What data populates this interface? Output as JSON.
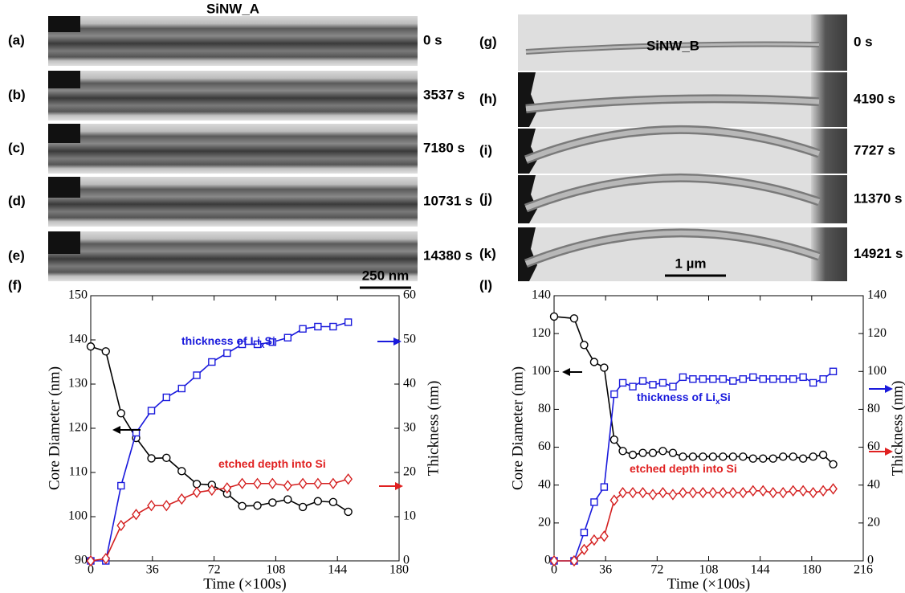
{
  "panels": {
    "left": {
      "title": "SiNW_A",
      "scale": "250 nm",
      "frames": [
        {
          "label": "(a)",
          "time": "0 s"
        },
        {
          "label": "(b)",
          "time": "3537 s"
        },
        {
          "label": "(c)",
          "time": "7180 s"
        },
        {
          "label": "(d)",
          "time": "10731 s"
        },
        {
          "label": "(e)",
          "time": "14380 s"
        }
      ]
    },
    "right": {
      "title": "SiNW_B",
      "scale": "1 µm",
      "frames": [
        {
          "label": "(g)",
          "time": "0 s"
        },
        {
          "label": "(h)",
          "time": "4190 s"
        },
        {
          "label": "(i)",
          "time": "7727 s"
        },
        {
          "label": "(j)",
          "time": "11370 s"
        },
        {
          "label": "(k)",
          "time": "14921 s"
        }
      ]
    }
  },
  "chart_data": [
    {
      "type": "line",
      "panel": "(f)",
      "x_label": "Time (×100s)",
      "y_label": "Core Diameter (nm)",
      "y2_label": "Thickness (nm)",
      "xlim": [
        0,
        180
      ],
      "xticks": [
        0,
        36,
        72,
        108,
        144,
        180
      ],
      "ylim": [
        90,
        150
      ],
      "yticks": [
        90,
        100,
        110,
        120,
        130,
        140,
        150
      ],
      "y2lim": [
        0,
        60
      ],
      "y2ticks": [
        0,
        10,
        20,
        30,
        40,
        50,
        60
      ],
      "x": [
        0,
        8.8,
        17.7,
        26.5,
        35.4,
        44.2,
        53.1,
        61.9,
        70.7,
        79.6,
        88.4,
        97.3,
        106.1,
        115,
        123.8,
        132.6,
        141.5,
        150.3
      ],
      "series": [
        {
          "color": "#000000",
          "marker": "circle",
          "values": [
            138.5,
            137.4,
            123.4,
            117.8,
            113.2,
            113.3,
            110.3,
            107.4,
            107.2,
            105.2,
            102.4,
            102.5,
            103.2,
            103.9,
            102.2,
            103.5,
            103.3,
            101.1
          ]
        },
        {
          "color": "#1a1adc",
          "marker": "square",
          "axis": "y2",
          "values": [
            0,
            0,
            17,
            29,
            34,
            37,
            39,
            42,
            45,
            47,
            49,
            49,
            49.5,
            50.5,
            52.5,
            53,
            53,
            54
          ]
        },
        {
          "color": "#d42020",
          "marker": "diamond",
          "axis": "y2",
          "values": [
            0,
            0.5,
            8,
            10.5,
            12.5,
            12.5,
            14,
            15.5,
            16,
            16.5,
            17.5,
            17.5,
            17.5,
            17,
            17.5,
            17.5,
            17.5,
            18.5
          ]
        }
      ],
      "annotations": [
        {
          "text": "thickness of Li",
          "subscript": "x",
          "suffix": "Si",
          "color": "#1a1adc"
        },
        {
          "text": "etched depth into Si",
          "color": "#e02020"
        }
      ]
    },
    {
      "type": "line",
      "panel": "(l)",
      "x_label": "Time (×100s)",
      "y_label": "Core Diameter (nm)",
      "y2_label": "Thickness (nm)",
      "xlim": [
        0,
        216
      ],
      "xticks": [
        0,
        36,
        72,
        108,
        144,
        180,
        216
      ],
      "ylim": [
        0,
        140
      ],
      "yticks": [
        0,
        20,
        40,
        60,
        80,
        100,
        120,
        140
      ],
      "y2lim": [
        0,
        140
      ],
      "y2ticks": [
        0,
        20,
        40,
        60,
        80,
        100,
        120,
        140
      ],
      "x": [
        0,
        14,
        21,
        28,
        35,
        42,
        48,
        55,
        62,
        69,
        76,
        83,
        90,
        97,
        104,
        111,
        118,
        125,
        132,
        139,
        146,
        153,
        160,
        167,
        174,
        181,
        188,
        195
      ],
      "series": [
        {
          "color": "#000000",
          "marker": "circle",
          "values": [
            129,
            128,
            114,
            105,
            102,
            64,
            58,
            56,
            57,
            57,
            58,
            57,
            55,
            55,
            55,
            55,
            55,
            55,
            55,
            54,
            54,
            54,
            55,
            55,
            54,
            55,
            56,
            51
          ]
        },
        {
          "color": "#1a1adc",
          "marker": "square",
          "axis": "y2",
          "values": [
            0,
            0,
            15,
            31,
            39,
            88,
            94,
            92,
            95,
            93,
            94,
            92,
            97,
            96,
            96,
            96,
            96,
            95,
            96,
            97,
            96,
            96,
            96,
            96,
            97,
            94,
            96,
            100
          ]
        },
        {
          "color": "#d42020",
          "marker": "diamond",
          "axis": "y2",
          "values": [
            0,
            0,
            6,
            11,
            13,
            32,
            36,
            36,
            36,
            35,
            36,
            35,
            36,
            36,
            36,
            36,
            36,
            36,
            36,
            37,
            37,
            36,
            36,
            37,
            37,
            36,
            37,
            38
          ]
        }
      ],
      "annotations": [
        {
          "text": "thickness of Li",
          "subscript": "x",
          "suffix": "Si",
          "color": "#1a1adc"
        },
        {
          "text": "etched depth into Si",
          "color": "#e02020"
        }
      ]
    }
  ]
}
